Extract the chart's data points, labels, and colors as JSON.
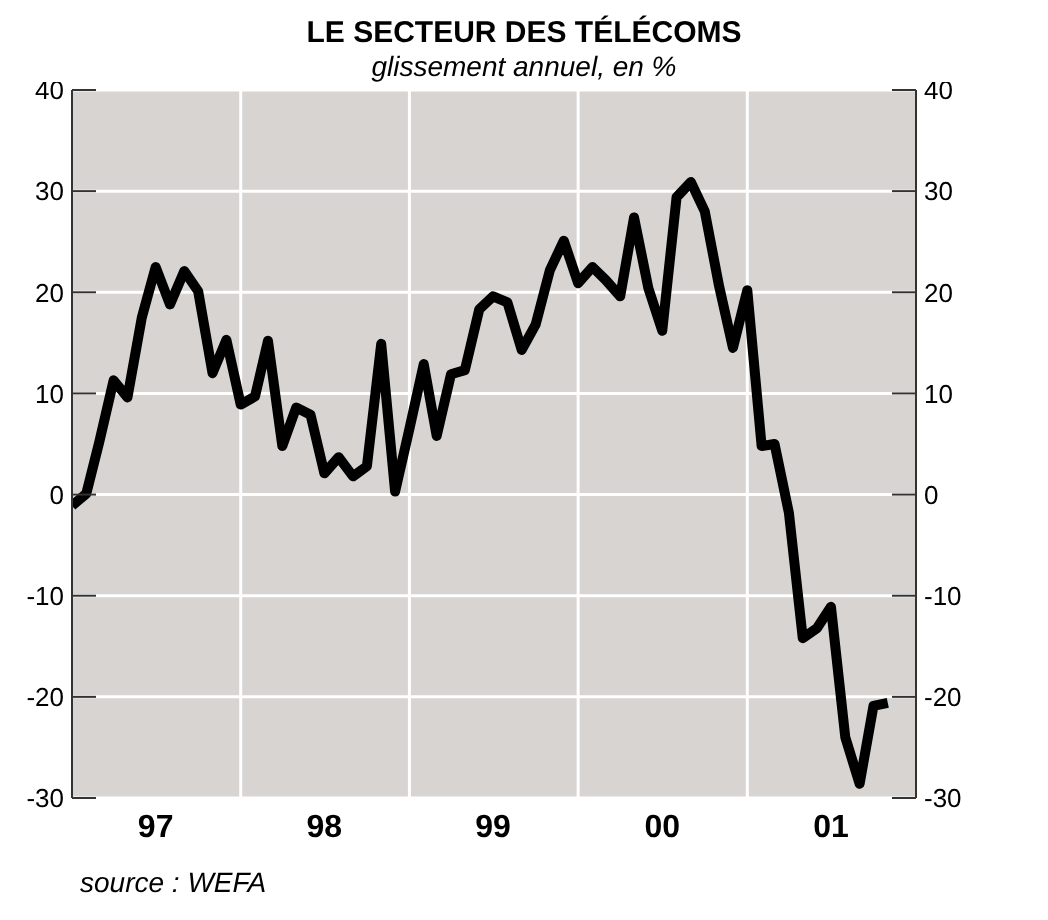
{
  "chart_data": {
    "type": "line",
    "title": "LE SECTEUR DES TÉLÉCOMS",
    "subtitle": "glissement annuel, en %",
    "annotations": [
      "source : WEFA"
    ],
    "x": [
      "1997-01",
      "1997-02",
      "1997-03",
      "1997-04",
      "1997-05",
      "1997-06",
      "1997-07",
      "1997-08",
      "1997-09",
      "1997-10",
      "1997-11",
      "1997-12",
      "1998-01",
      "1998-02",
      "1998-03",
      "1998-04",
      "1998-05",
      "1998-06",
      "1998-07",
      "1998-08",
      "1998-09",
      "1998-10",
      "1998-11",
      "1998-12",
      "1999-01",
      "1999-02",
      "1999-03",
      "1999-04",
      "1999-05",
      "1999-06",
      "1999-07",
      "1999-08",
      "1999-09",
      "1999-10",
      "1999-11",
      "1999-12",
      "2000-01",
      "2000-02",
      "2000-03",
      "2000-04",
      "2000-05",
      "2000-06",
      "2000-07",
      "2000-08",
      "2000-09",
      "2000-10",
      "2000-11",
      "2000-12",
      "2001-01",
      "2001-02",
      "2001-03",
      "2001-04",
      "2001-05",
      "2001-06",
      "2001-07",
      "2001-08",
      "2001-09",
      "2001-10",
      "2001-11"
    ],
    "series": [
      {
        "color": "#000000",
        "values": [
          -1.1,
          0.1,
          5.2,
          11.3,
          9.6,
          17.5,
          22.5,
          18.8,
          22.1,
          20.1,
          12.0,
          15.3,
          8.9,
          9.7,
          15.2,
          4.8,
          8.6,
          7.9,
          2.1,
          3.7,
          1.8,
          2.8,
          14.9,
          0.3,
          6.5,
          12.9,
          5.8,
          11.9,
          12.3,
          18.3,
          19.6,
          19.0,
          14.3,
          16.8,
          22.2,
          25.1,
          20.9,
          22.5,
          21.2,
          19.6,
          27.4,
          20.4,
          16.2,
          29.4,
          30.9,
          28.0,
          20.6,
          14.5,
          20.2,
          4.8,
          5.0,
          -1.8,
          -14.2,
          -13.2,
          -11.1,
          -24.0,
          -28.6,
          -20.9,
          -20.6
        ]
      }
    ],
    "xlim": [
      "1997-01",
      "2002-01"
    ],
    "xticks": [
      {
        "value": "1997-07",
        "label": "97"
      },
      {
        "value": "1998-01",
        "label": null
      },
      {
        "value": "1998-07",
        "label": "98"
      },
      {
        "value": "1999-01",
        "label": null
      },
      {
        "value": "1999-07",
        "label": "99"
      },
      {
        "value": "2000-01",
        "label": null
      },
      {
        "value": "2000-07",
        "label": "00"
      },
      {
        "value": "2001-01",
        "label": null
      },
      {
        "value": "2001-07",
        "label": "01"
      }
    ],
    "ylim": [
      -30,
      40
    ],
    "yticks": [
      -30,
      -20,
      -10,
      0,
      10,
      20,
      30,
      40
    ],
    "y2lim": [
      -30,
      40
    ],
    "y2ticks": [
      -30,
      -20,
      -10,
      0,
      10,
      20,
      30,
      40
    ],
    "grid": true,
    "marker": "none",
    "line_style": "solid"
  }
}
